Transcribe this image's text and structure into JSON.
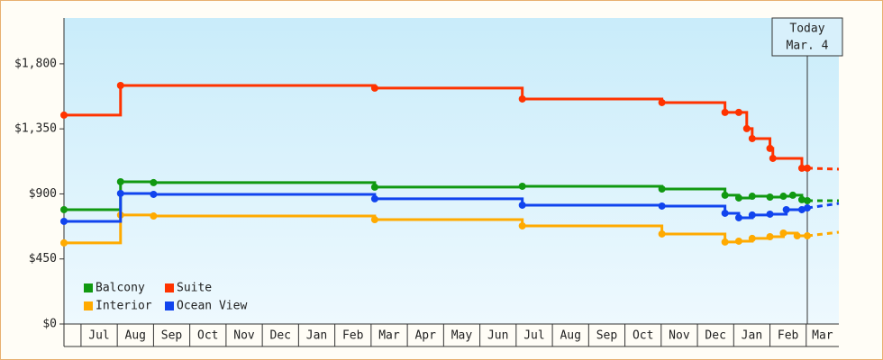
{
  "chart_data": {
    "type": "line",
    "step": true,
    "categories": [
      null,
      "Jul",
      "Aug",
      "Sep",
      "Oct",
      "Nov",
      "Dec",
      "Jan",
      "Feb",
      "Mar",
      "Apr",
      "May",
      "Jun",
      "Jul",
      "Aug",
      "Sep",
      "Oct",
      "Nov",
      "Dec",
      "Jan",
      "Feb",
      "Mar"
    ],
    "xlim": [
      0.53,
      21.9
    ],
    "ylim": [
      0,
      2117
    ],
    "yticks": [
      {
        "value": 0,
        "label": "$0"
      },
      {
        "value": 450,
        "label": "$450"
      },
      {
        "value": 900,
        "label": "$900"
      },
      {
        "value": 1350,
        "label": "$1,350"
      },
      {
        "value": 1800,
        "label": "$1,800"
      }
    ],
    "series": [
      {
        "name": "Balcony",
        "color": "#119911",
        "x": [
          0.53,
          2.09,
          3.0,
          9.1,
          13.17,
          17.02,
          18.76,
          19.14,
          19.51,
          20.0,
          20.37,
          20.63,
          20.88,
          21.03,
          21.9
        ],
        "values": [
          791,
          984,
          978,
          947,
          953,
          934,
          891,
          872,
          884,
          878,
          884,
          891,
          860,
          853,
          853
        ]
      },
      {
        "name": "Suite",
        "color": "#ff3300",
        "x": [
          0.53,
          2.09,
          9.1,
          13.17,
          17.02,
          18.76,
          19.14,
          19.36,
          19.51,
          20.0,
          20.08,
          20.88,
          21.03,
          21.9
        ],
        "values": [
          1445,
          1650,
          1632,
          1557,
          1532,
          1464,
          1464,
          1352,
          1283,
          1215,
          1146,
          1078,
          1078,
          1071
        ]
      },
      {
        "name": "Interior",
        "color": "#ffaa00",
        "x": [
          0.53,
          2.09,
          3.0,
          9.1,
          13.17,
          17.02,
          18.76,
          19.14,
          19.51,
          20.0,
          20.37,
          20.75,
          21.03,
          21.9
        ],
        "values": [
          561,
          754,
          747,
          722,
          679,
          623,
          567,
          573,
          592,
          604,
          629,
          610,
          610,
          635
        ]
      },
      {
        "name": "Ocean View",
        "color": "#1144ee",
        "x": [
          0.53,
          2.09,
          3.0,
          9.1,
          13.17,
          17.02,
          18.76,
          19.14,
          19.51,
          20.0,
          20.45,
          20.88,
          21.03,
          21.9
        ],
        "values": [
          710,
          903,
          897,
          866,
          822,
          816,
          766,
          735,
          754,
          760,
          791,
          791,
          803,
          834
        ]
      }
    ],
    "annotation": {
      "lines": [
        "Today",
        "Mar. 4"
      ],
      "x": 21.03
    },
    "legend": "lower left"
  }
}
